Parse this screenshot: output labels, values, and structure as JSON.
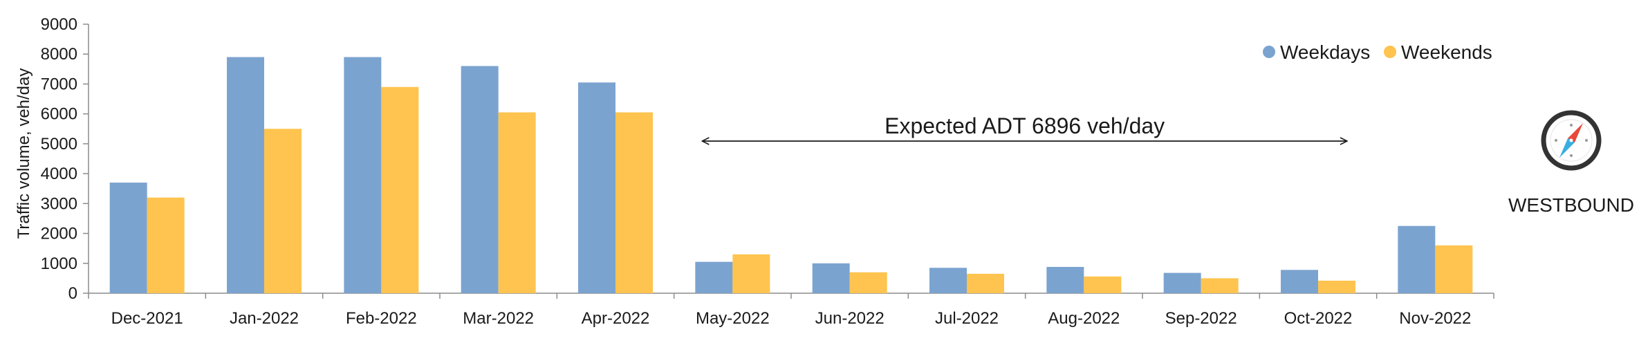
{
  "chart_data": {
    "type": "bar",
    "title": "",
    "xlabel": "",
    "ylabel": "Traffic volume, veh/day",
    "ylim": [
      0,
      9000
    ],
    "yticks": [
      0,
      1000,
      2000,
      3000,
      4000,
      5000,
      6000,
      7000,
      8000,
      9000
    ],
    "grid": false,
    "legend_position": "top-right",
    "categories": [
      "Dec-2021",
      "Jan-2022",
      "Feb-2022",
      "Mar-2022",
      "Apr-2022",
      "May-2022",
      "Jun-2022",
      "Jul-2022",
      "Aug-2022",
      "Sep-2022",
      "Oct-2022",
      "Nov-2022"
    ],
    "series": [
      {
        "name": "Weekdays",
        "color": "#7ba3d0",
        "values": [
          3700,
          7900,
          7900,
          7600,
          7050,
          1050,
          1000,
          850,
          880,
          680,
          780,
          2250
        ]
      },
      {
        "name": "Weekends",
        "color": "#fec44f",
        "values": [
          3200,
          5500,
          6900,
          6050,
          6050,
          1300,
          700,
          650,
          560,
          500,
          420,
          1600
        ]
      }
    ],
    "annotation": {
      "text": "Expected ADT 6896 veh/day",
      "from_category": "May-2022",
      "to_category": "Oct-2022"
    }
  },
  "direction": {
    "label": "WESTBOUND",
    "icon": "compass-icon"
  }
}
